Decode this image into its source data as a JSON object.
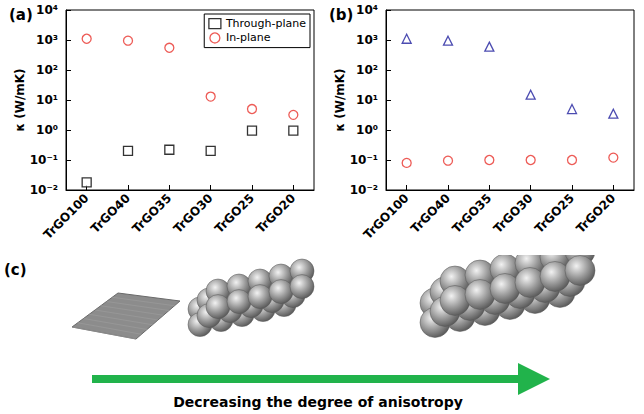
{
  "chart_data": [
    {
      "type": "scatter",
      "title": "(a)",
      "categories": [
        "TrGO100",
        "TrGO40",
        "TrGO35",
        "TrGO30",
        "TrGO25",
        "TrGO20"
      ],
      "ylabel": "κ (W/mK)",
      "log": "y",
      "ylim": [
        0.01,
        10000
      ],
      "yticks": [
        {
          "value": 0.01,
          "label": "10⁻²"
        },
        {
          "value": 0.1,
          "label": "10⁻¹"
        },
        {
          "value": 1,
          "label": "10⁰"
        },
        {
          "value": 10,
          "label": "10¹"
        },
        {
          "value": 100,
          "label": "10²"
        },
        {
          "value": 1000,
          "label": "10³"
        },
        {
          "value": 10000,
          "label": "10⁴"
        }
      ],
      "legend": "upper right",
      "series": [
        {
          "name": "Through-plane",
          "color": "#000000",
          "marker": "square",
          "values": [
            0.018,
            0.2,
            0.22,
            0.2,
            0.95,
            0.95
          ]
        },
        {
          "name": "In-plane",
          "color": "#e8322c",
          "marker": "circle",
          "values": [
            1100,
            950,
            550,
            13,
            5,
            3.2
          ]
        }
      ]
    },
    {
      "type": "scatter",
      "title": "(b)",
      "categories": [
        "TrGO100",
        "TrGO40",
        "TrGO35",
        "TrGO30",
        "TrGO25",
        "TrGO20"
      ],
      "ylabel": "κ (W/mK)",
      "log": "y",
      "ylim": [
        0.01,
        10000
      ],
      "yticks": [
        {
          "value": 0.01,
          "label": "10⁻²"
        },
        {
          "value": 0.1,
          "label": "10⁻¹"
        },
        {
          "value": 1,
          "label": "10⁰"
        },
        {
          "value": 10,
          "label": "10¹"
        },
        {
          "value": 100,
          "label": "10²"
        },
        {
          "value": 1000,
          "label": "10³"
        },
        {
          "value": 10000,
          "label": "10⁴"
        }
      ],
      "series": [
        {
          "color": "#1f1f9e",
          "marker": "triangle",
          "values": [
            1100,
            950,
            600,
            15,
            5,
            3.5
          ]
        },
        {
          "color": "#e8322c",
          "marker": "circle",
          "values": [
            0.08,
            0.095,
            0.1,
            0.1,
            0.1,
            0.12
          ]
        }
      ]
    }
  ],
  "panel_c": {
    "label": "(c)",
    "caption": "Decreasing the degree of anisotropy"
  }
}
